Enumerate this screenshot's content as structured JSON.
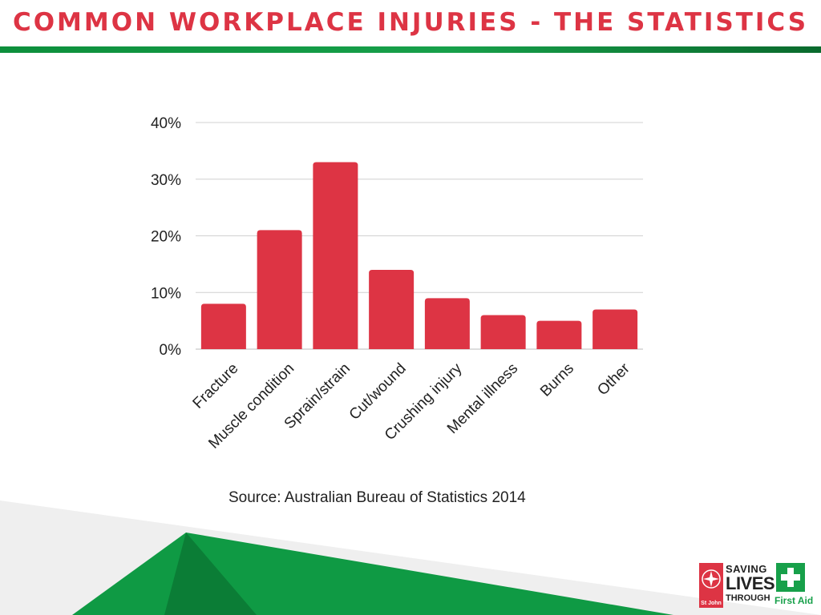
{
  "slide": {
    "title": "COMMON WORKPLACE INJURIES - THE STATISTICS",
    "source": "Source: Australian Bureau of Statistics 2014",
    "colors": {
      "title": "#dd3444",
      "bar": "#dd3444",
      "accent_green": "#17a04a",
      "grid": "#d0d0d0"
    }
  },
  "chart_data": {
    "type": "bar",
    "categories": [
      "Fracture",
      "Muscle condition",
      "Sprain/strain",
      "Cut/wound",
      "Crushing injury",
      "Mental illness",
      "Burns",
      "Other"
    ],
    "values": [
      8,
      21,
      33,
      14,
      9,
      6,
      5,
      7
    ],
    "unit": "%",
    "ylim": [
      0,
      40
    ],
    "yticks": [
      0,
      10,
      20,
      30,
      40
    ],
    "ytick_labels": [
      "0%",
      "10%",
      "20%",
      "30%",
      "40%"
    ],
    "grid": true,
    "legend": "none",
    "xlabel": "",
    "ylabel": ""
  },
  "logo": {
    "line1": "SAVING",
    "line2": "LIVES",
    "line3": "THROUGH",
    "line4": "First Aid",
    "badge": "St John",
    "icons": [
      "st-john-cross-icon",
      "first-aid-cross-icon"
    ]
  }
}
